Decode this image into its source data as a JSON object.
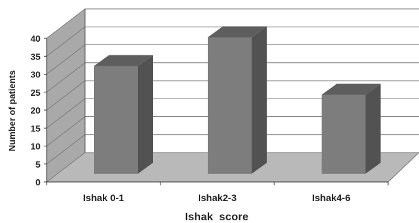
{
  "chart_data": {
    "type": "bar",
    "title": "",
    "categories": [
      "Ishak 0-1",
      "Ishak2-3",
      "Ishak4-6"
    ],
    "values": [
      30,
      38,
      22
    ],
    "xlabel": "Ishak  score",
    "ylabel": "Number of patients",
    "ylim": [
      0,
      40
    ],
    "yticks": [
      "0",
      "5",
      "10",
      "15",
      "20",
      "25",
      "30",
      "35",
      "40"
    ],
    "grid": true,
    "legend": "none",
    "colors": {
      "bar_front": "#7d7d7d",
      "bar_top": "#5e5e5e",
      "bar_side": "#525252",
      "back_wall": "#ffffff",
      "side_wall": "#a9a9a9",
      "floor": "#b9b9b9",
      "gridline": "#7a7a7a"
    }
  }
}
